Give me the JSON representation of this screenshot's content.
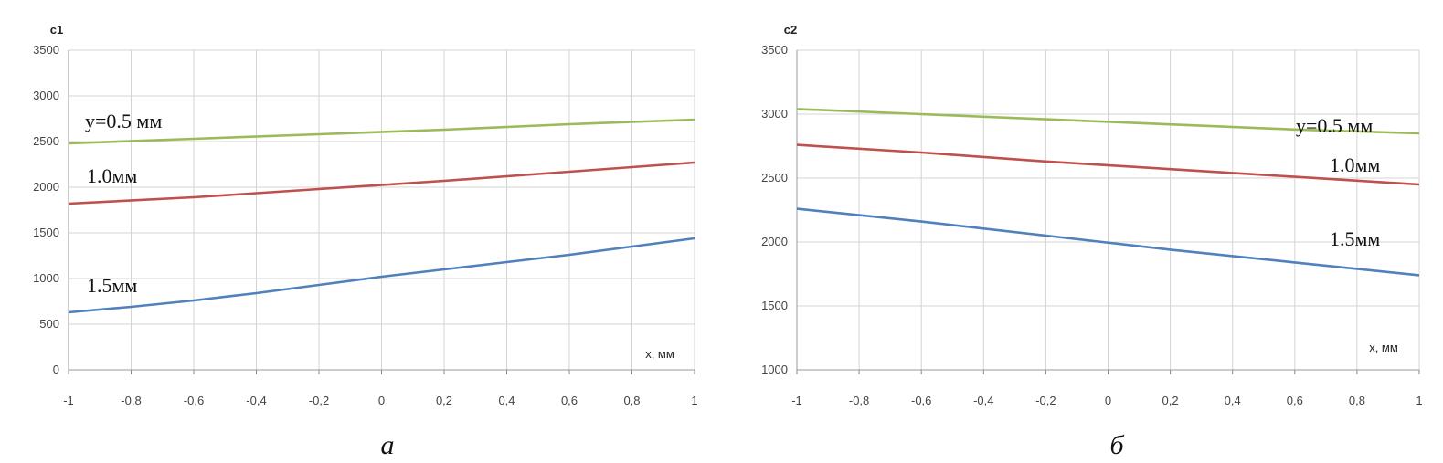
{
  "chart_data": [
    {
      "type": "line",
      "panel_label": "а",
      "ylabel": "c1",
      "xlabel": "x, мм",
      "ylim": [
        0,
        3500
      ],
      "yticks": [
        0,
        500,
        1000,
        1500,
        2000,
        2500,
        3000,
        3500
      ],
      "ytick_labels": [
        "0",
        "500",
        "1000",
        "1500",
        "2000",
        "2500",
        "3000",
        "3500"
      ],
      "xlim": [
        -1,
        1
      ],
      "xticks": [
        -1,
        -0.8,
        -0.6,
        -0.4,
        -0.2,
        0,
        0.2,
        0.4,
        0.6,
        0.8,
        1
      ],
      "xtick_labels": [
        "-1",
        "-0,8",
        "-0,6",
        "-0,4",
        "-0,2",
        "0",
        "0,2",
        "0,4",
        "0,6",
        "0,8",
        "1"
      ],
      "grid": true,
      "series": [
        {
          "label": "y=0.5 мм",
          "color": "#9bbb59",
          "x": [
            -1,
            -0.6,
            -0.2,
            0.2,
            0.6,
            1
          ],
          "y": [
            2480,
            2530,
            2580,
            2630,
            2690,
            2740
          ]
        },
        {
          "label": "1.0мм",
          "color": "#c0504d",
          "x": [
            -1,
            -0.6,
            -0.2,
            0.2,
            0.6,
            1
          ],
          "y": [
            1820,
            1890,
            1980,
            2070,
            2170,
            2270
          ]
        },
        {
          "label": "1.5мм",
          "color": "#4f81bd",
          "x": [
            -1,
            -0.8,
            -0.6,
            -0.4,
            -0.2,
            0,
            0.2,
            0.4,
            0.6,
            0.8,
            1
          ],
          "y": [
            630,
            690,
            760,
            840,
            930,
            1020,
            1100,
            1180,
            1260,
            1350,
            1440
          ]
        }
      ]
    },
    {
      "type": "line",
      "panel_label": "б",
      "ylabel": "c2",
      "xlabel": "x, мм",
      "ylim": [
        1000,
        3500
      ],
      "yticks": [
        1000,
        1500,
        2000,
        2500,
        3000,
        3500
      ],
      "ytick_labels": [
        "1000",
        "1500",
        "2000",
        "2500",
        "3000",
        "3500"
      ],
      "xlim": [
        -1,
        1
      ],
      "xticks": [
        -1,
        -0.8,
        -0.6,
        -0.4,
        -0.2,
        0,
        0.2,
        0.4,
        0.6,
        0.8,
        1
      ],
      "xtick_labels": [
        "-1",
        "-0,8",
        "-0,6",
        "-0,4",
        "-0,2",
        "0",
        "0,2",
        "0,4",
        "0,6",
        "0,8",
        "1"
      ],
      "grid": true,
      "series": [
        {
          "label": "y=0.5 мм",
          "color": "#9bbb59",
          "x": [
            -1,
            -0.6,
            -0.2,
            0.2,
            0.6,
            1
          ],
          "y": [
            3040,
            3000,
            2960,
            2920,
            2880,
            2850
          ]
        },
        {
          "label": "1.0мм",
          "color": "#c0504d",
          "x": [
            -1,
            -0.6,
            -0.2,
            0.2,
            0.6,
            1
          ],
          "y": [
            2760,
            2700,
            2630,
            2570,
            2510,
            2450
          ]
        },
        {
          "label": "1.5мм",
          "color": "#4f81bd",
          "x": [
            -1,
            -0.6,
            -0.2,
            0.2,
            0.6,
            1
          ],
          "y": [
            2260,
            2160,
            2050,
            1940,
            1840,
            1740
          ]
        }
      ]
    }
  ]
}
